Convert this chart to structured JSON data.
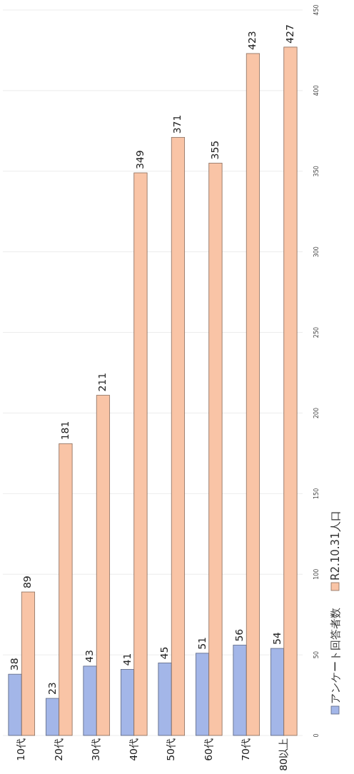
{
  "chart_data": {
    "type": "bar",
    "categories": [
      "10代",
      "20代",
      "30代",
      "40代",
      "50代",
      "60代",
      "70代",
      "80以上"
    ],
    "series": [
      {
        "name": "アンケート回答者数",
        "color": "#a3b6e8",
        "values": [
          38,
          23,
          43,
          41,
          45,
          51,
          56,
          54
        ]
      },
      {
        "name": "R2.10.31人口",
        "color": "#f9c4a6",
        "values": [
          89,
          181,
          211,
          349,
          371,
          355,
          423,
          427
        ]
      }
    ],
    "ylim": [
      0,
      450
    ],
    "yticks": [
      0,
      50,
      100,
      150,
      200,
      250,
      300,
      350,
      400,
      450
    ],
    "data_labels": true,
    "legend": "right",
    "grid": "y"
  }
}
